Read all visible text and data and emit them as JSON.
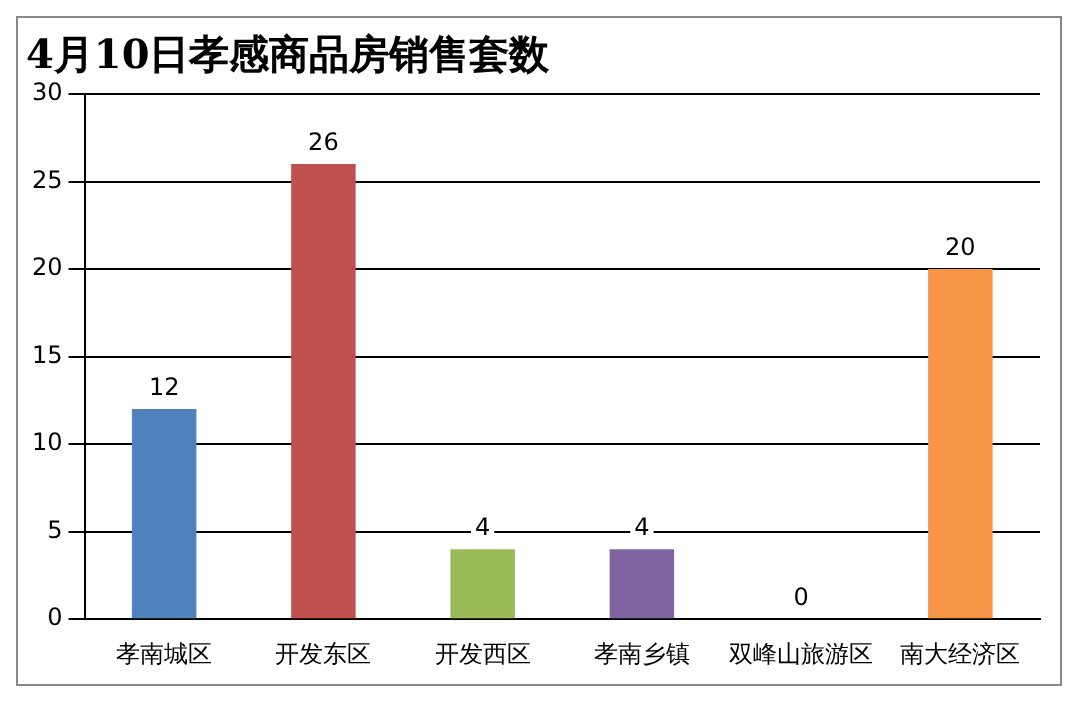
{
  "chart_data": {
    "type": "bar",
    "title": "4月10日孝感商品房销售套数",
    "categories": [
      "孝南城区",
      "开发东区",
      "开发西区",
      "孝南乡镇",
      "双峰山旅游区",
      "南大经济区"
    ],
    "values": [
      12,
      26,
      4,
      4,
      0,
      20
    ],
    "colors": [
      "#4f81bd",
      "#c0504d",
      "#9bbb59",
      "#8064a2",
      "#4bacc6",
      "#f79646"
    ],
    "ylim": [
      0,
      30
    ],
    "yticks": [
      0,
      5,
      10,
      15,
      20,
      25,
      30
    ],
    "grid": "y",
    "data_labels": true,
    "legend": false
  }
}
